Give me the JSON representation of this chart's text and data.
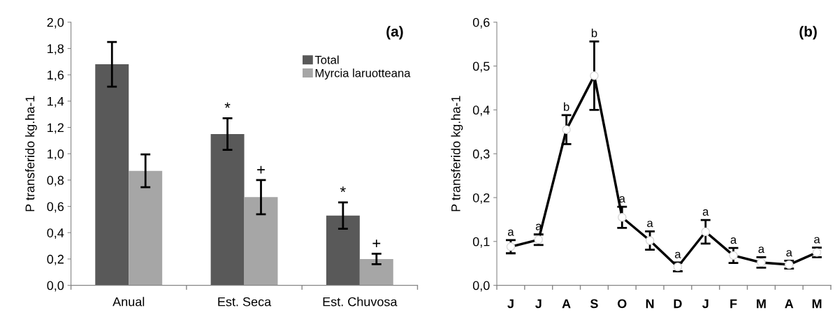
{
  "chart_data": [
    {
      "type": "bar",
      "title": "(a)",
      "ylabel": "P transferido kg.ha-1",
      "categories": [
        "Anual",
        "Est. Seca",
        "Est. Chuvosa"
      ],
      "series": [
        {
          "name": "Total",
          "color": "#595959",
          "values": [
            1.68,
            1.15,
            0.53
          ],
          "errors": [
            0.17,
            0.12,
            0.1
          ]
        },
        {
          "name": "Myrcia laruotteana",
          "color": "#a6a6a6",
          "values": [
            0.87,
            0.67,
            0.2
          ],
          "errors": [
            0.125,
            0.13,
            0.04
          ]
        }
      ],
      "ylim": [
        0,
        2
      ],
      "yticks": [
        {
          "value": 0,
          "label": "0,0"
        },
        {
          "value": 0.2,
          "label": "0,2"
        },
        {
          "value": 0.4,
          "label": "0,4"
        },
        {
          "value": 0.6,
          "label": "0,6"
        },
        {
          "value": 0.8,
          "label": "0,8"
        },
        {
          "value": 1.0,
          "label": "1,0"
        },
        {
          "value": 1.2,
          "label": "1,2"
        },
        {
          "value": 1.4,
          "label": "1,4"
        },
        {
          "value": 1.6,
          "label": "1,6"
        },
        {
          "value": 1.8,
          "label": "1,8"
        },
        {
          "value": 2.0,
          "label": "2,0"
        }
      ],
      "annotations": [
        {
          "text": "*",
          "x": "Est. Seca",
          "y": 1.15
        },
        {
          "text": "+",
          "x": "Est. Seca",
          "y": 0.67
        },
        {
          "text": "*",
          "x": "Est. Chuvosa",
          "y": 0.53
        },
        {
          "text": "+",
          "x": "Est. Chuvosa",
          "y": 0.2
        }
      ],
      "legend": "top right",
      "grid": false
    },
    {
      "type": "line",
      "title": "(b)",
      "ylabel": "P transferido kg.ha-1",
      "categories": [
        "J",
        "J",
        "A",
        "S",
        "O",
        "N",
        "D",
        "J",
        "F",
        "M",
        "A",
        "M"
      ],
      "series": [
        {
          "color": "#000000",
          "values": [
            0.088,
            0.104,
            0.355,
            0.478,
            0.155,
            0.102,
            0.042,
            0.122,
            0.068,
            0.052,
            0.047,
            0.075
          ],
          "errors": [
            0.015,
            0.012,
            0.033,
            0.078,
            0.024,
            0.021,
            0.01,
            0.027,
            0.017,
            0.012,
            0.009,
            0.011
          ]
        }
      ],
      "ylim": [
        0,
        0.6
      ],
      "yticks": [
        {
          "value": 0,
          "label": "0,0"
        },
        {
          "value": 0.1,
          "label": "0,1"
        },
        {
          "value": 0.2,
          "label": "0,2"
        },
        {
          "value": 0.3,
          "label": "0,3"
        },
        {
          "value": 0.4,
          "label": "0,4"
        },
        {
          "value": 0.5,
          "label": "0,5"
        },
        {
          "value": 0.6,
          "label": "0,6"
        }
      ],
      "annotations": [
        "a",
        "a",
        "b",
        "b",
        "a",
        "a",
        "a",
        "a",
        "a",
        "a",
        "a",
        "a"
      ],
      "marker": "circle",
      "line_style": "solid",
      "legend": false,
      "grid": false
    }
  ]
}
